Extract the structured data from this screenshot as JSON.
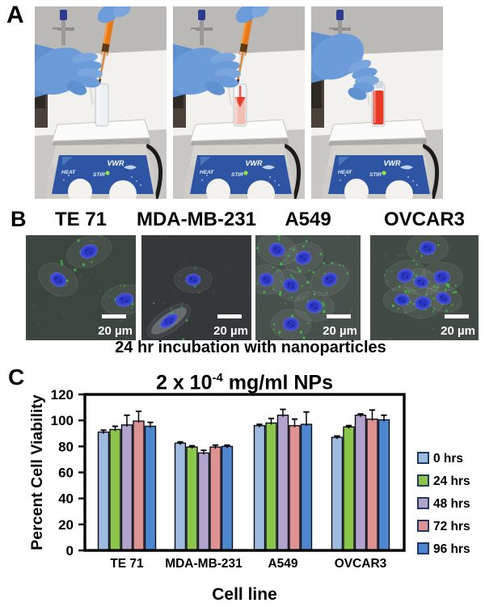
{
  "panel_a": {
    "label": "A",
    "photos": [
      {
        "vial_state": "clear"
      },
      {
        "vial_state": "filling"
      },
      {
        "vial_state": "full"
      }
    ],
    "device": {
      "brand": "VWR",
      "heat_label": "HEAT",
      "stir_label": "STIR"
    }
  },
  "panel_b": {
    "label": "B",
    "cell_lines": [
      "TE 71",
      "MDA-MB-231",
      "A549",
      "OVCAR3"
    ],
    "scale_bar_label": "20 µm",
    "caption": "24 hr incubation with nanoparticles"
  },
  "panel_c": {
    "label": "C"
  },
  "chart_data": {
    "type": "bar",
    "title": "2 x 10⁻⁴ mg/ml NPs",
    "title_base": "2 x 10",
    "title_exponent": "-4",
    "title_suffix": " mg/ml NPs",
    "xlabel": "Cell line",
    "ylabel": "Percent Cell Viability",
    "ylim": [
      0,
      120
    ],
    "yticks": [
      0,
      20,
      40,
      60,
      80,
      100,
      120
    ],
    "grid": false,
    "legend_position": "right",
    "categories": [
      "TE 71",
      "MDA-MB-231",
      "A549",
      "OVCAR3"
    ],
    "series": [
      {
        "name": "0 hrs",
        "color": "#9CBBDE",
        "values": [
          91,
          82.5,
          96,
          87
        ],
        "errors": [
          1.5,
          1,
          1,
          1
        ]
      },
      {
        "name": "24 hrs",
        "color": "#8BC64A",
        "values": [
          93,
          79.5,
          98,
          95
        ],
        "errors": [
          2.5,
          1,
          3.5,
          1
        ]
      },
      {
        "name": "48 hrs",
        "color": "#B2A3CC",
        "values": [
          96.5,
          75,
          104,
          104
        ],
        "errors": [
          7.5,
          2,
          4.5,
          1
        ]
      },
      {
        "name": "72 hrs",
        "color": "#DF9292",
        "values": [
          99.5,
          79.5,
          96,
          101
        ],
        "errors": [
          7.5,
          1.5,
          5,
          7
        ]
      },
      {
        "name": "96 hrs",
        "color": "#4C87D0",
        "values": [
          95.5,
          80,
          97,
          100.5
        ],
        "errors": [
          3,
          1,
          9.5,
          3.5
        ]
      }
    ],
    "bar_outline_color": "#0c0c18",
    "legend_border_color": "#1F3864"
  }
}
